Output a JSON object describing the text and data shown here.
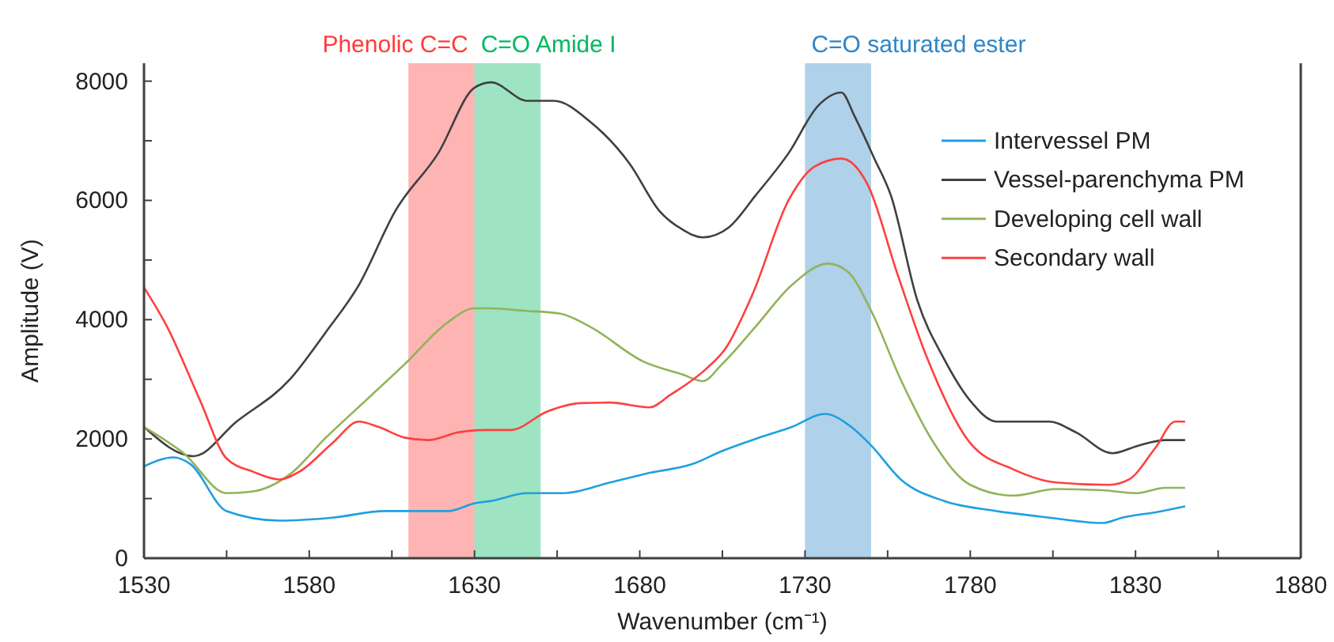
{
  "chart_data": {
    "type": "line",
    "xlabel": "Wavenumber (cm⁻¹)",
    "ylabel": "Amplitude (V)",
    "xlim": [
      1530,
      1880
    ],
    "ylim": [
      0,
      8300
    ],
    "xticks": [
      1530,
      {
        "value": 1555,
        "label": null
      },
      1580,
      {
        "value": 1605,
        "label": null
      },
      1630,
      {
        "value": 1655,
        "label": null
      },
      1680,
      {
        "value": 1705,
        "label": null
      },
      1730,
      {
        "value": 1755,
        "label": null
      },
      1780,
      {
        "value": 1805,
        "label": null
      },
      1830,
      {
        "value": 1855,
        "label": null
      },
      1880
    ],
    "yticks": [
      0,
      {
        "value": 1000,
        "label": null
      },
      2000,
      {
        "value": 3000,
        "label": null
      },
      4000,
      {
        "value": 5000,
        "label": null
      },
      6000,
      {
        "value": 7000,
        "label": null
      },
      8000
    ],
    "grid": false,
    "legend": "top right",
    "marker": "none",
    "line_style": "solid",
    "bands": [
      {
        "axis": "x",
        "from": 1610,
        "to": 1630,
        "label": "Phenolic C=C",
        "color": "#ff3b3b"
      },
      {
        "axis": "x",
        "from": 1630,
        "to": 1650,
        "label": "C=O Amide I",
        "color": "#00b860"
      },
      {
        "axis": "x",
        "from": 1730,
        "to": 1750,
        "label": "C=O saturated ester",
        "color": "#2e86c8"
      }
    ],
    "series": [
      {
        "name": "Intervessel PM",
        "color": "#1fa0e0",
        "x": [
          1530,
          1539,
          1544,
          1555,
          1571,
          1587,
          1603,
          1622,
          1630,
          1635,
          1646,
          1657,
          1671,
          1682,
          1696,
          1705,
          1715,
          1726,
          1736,
          1744,
          1750,
          1759,
          1772,
          1788,
          1804,
          1820,
          1826,
          1836,
          1845
        ],
        "values": [
          1540,
          1690,
          1580,
          790,
          630,
          680,
          790,
          790,
          920,
          960,
          1090,
          1090,
          1270,
          1420,
          1580,
          1800,
          2000,
          2200,
          2420,
          2200,
          1890,
          1320,
          960,
          790,
          680,
          590,
          680,
          770,
          870
        ]
      },
      {
        "name": "Vessel-parenchyma PM",
        "color": "#404040",
        "x": [
          1530,
          1545,
          1558,
          1574,
          1585,
          1595,
          1606,
          1619,
          1630,
          1635,
          1646,
          1654,
          1665,
          1677,
          1686,
          1693,
          1699,
          1707,
          1715,
          1725,
          1734,
          1741,
          1745,
          1751,
          1756,
          1764,
          1772,
          1780,
          1788,
          1796,
          1804,
          1812,
          1823,
          1831,
          1839,
          1845
        ],
        "values": [
          2200,
          1710,
          2290,
          2990,
          3790,
          4580,
          5820,
          6790,
          7890,
          7980,
          7670,
          7670,
          7320,
          6610,
          5820,
          5510,
          5380,
          5550,
          6080,
          6790,
          7590,
          7810,
          7410,
          6700,
          6080,
          4320,
          3350,
          2640,
          2290,
          2290,
          2290,
          2110,
          1760,
          1890,
          1980,
          1980
        ]
      },
      {
        "name": "Developing cell wall",
        "color": "#92b35a",
        "x": [
          1530,
          1542,
          1555,
          1563,
          1574,
          1585,
          1597,
          1609,
          1622,
          1630,
          1635,
          1645,
          1656,
          1665,
          1681,
          1693,
          1699,
          1705,
          1715,
          1726,
          1737,
          1743,
          1750,
          1759,
          1769,
          1780,
          1793,
          1806,
          1820,
          1830,
          1839,
          1845
        ],
        "values": [
          2200,
          1760,
          1090,
          1120,
          1400,
          2020,
          2640,
          3260,
          3960,
          4190,
          4190,
          4150,
          4100,
          3880,
          3300,
          3080,
          2970,
          3260,
          3880,
          4580,
          4940,
          4800,
          4150,
          2990,
          1930,
          1230,
          1050,
          1160,
          1140,
          1090,
          1180,
          1180
        ]
      },
      {
        "name": "Secondary wall",
        "color": "#ff4040",
        "x": [
          1530,
          1537,
          1547,
          1555,
          1563,
          1571,
          1577,
          1587,
          1595,
          1601,
          1609,
          1616,
          1625,
          1633,
          1641,
          1652,
          1662,
          1671,
          1683,
          1689,
          1700,
          1706,
          1714,
          1725,
          1733,
          1741,
          1749,
          1758,
          1767,
          1780,
          1793,
          1806,
          1822,
          1828,
          1836,
          1842,
          1845
        ],
        "values": [
          4540,
          3880,
          2640,
          1670,
          1450,
          1320,
          1450,
          1930,
          2290,
          2200,
          2020,
          1980,
          2110,
          2150,
          2150,
          2460,
          2600,
          2610,
          2530,
          2730,
          3170,
          3520,
          4410,
          6000,
          6570,
          6700,
          6260,
          4760,
          3350,
          1930,
          1490,
          1270,
          1230,
          1320,
          1850,
          2290,
          2290
        ]
      }
    ]
  }
}
